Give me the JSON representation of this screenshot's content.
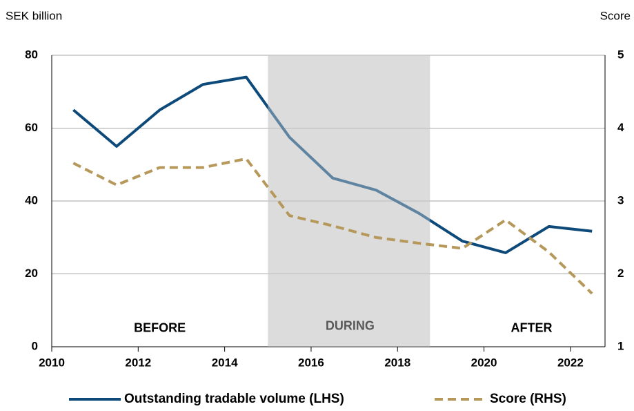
{
  "chart_data": {
    "type": "line",
    "y_label": "SEK billion",
    "y2_label": "Score",
    "x": [
      2010.5,
      2011.5,
      2012.5,
      2013.5,
      2014.5,
      2015.5,
      2016.5,
      2017.5,
      2018.5,
      2019.5,
      2020.5,
      2021.5,
      2022.5
    ],
    "series": [
      {
        "name": "Outstanding tradable volume (LHS)",
        "color": "#0d4a7a",
        "axis": "y",
        "values": [
          65,
          55,
          65,
          72,
          74,
          57.5,
          46.3,
          43,
          36.6,
          29,
          25.8,
          33,
          31.7
        ]
      },
      {
        "name": "Score (RHS)",
        "color": "#b5985a",
        "axis": "y2",
        "dashed": true,
        "values": [
          3.52,
          3.22,
          3.46,
          3.46,
          3.58,
          2.8,
          2.66,
          2.5,
          2.42,
          2.35,
          2.74,
          2.3,
          1.73
        ]
      }
    ],
    "xlim": [
      2010,
      2022.8
    ],
    "xticks": [
      2010,
      2012,
      2014,
      2016,
      2018,
      2020,
      2022
    ],
    "ylim": [
      0,
      80
    ],
    "yticks": [
      0,
      20,
      40,
      60,
      80
    ],
    "y2lim": [
      1,
      5
    ],
    "y2ticks": [
      1,
      2,
      3,
      4,
      5
    ],
    "grid": true,
    "legend": "bottom",
    "shaded_region": [
      2015,
      2018.75
    ],
    "annotations": [
      {
        "text": "BEFORE",
        "x": 2012.5,
        "y": 5
      },
      {
        "text": "DURING",
        "x": 2016.9,
        "y": 5.5
      },
      {
        "text": "AFTER",
        "x": 2021.1,
        "y": 5
      }
    ]
  }
}
